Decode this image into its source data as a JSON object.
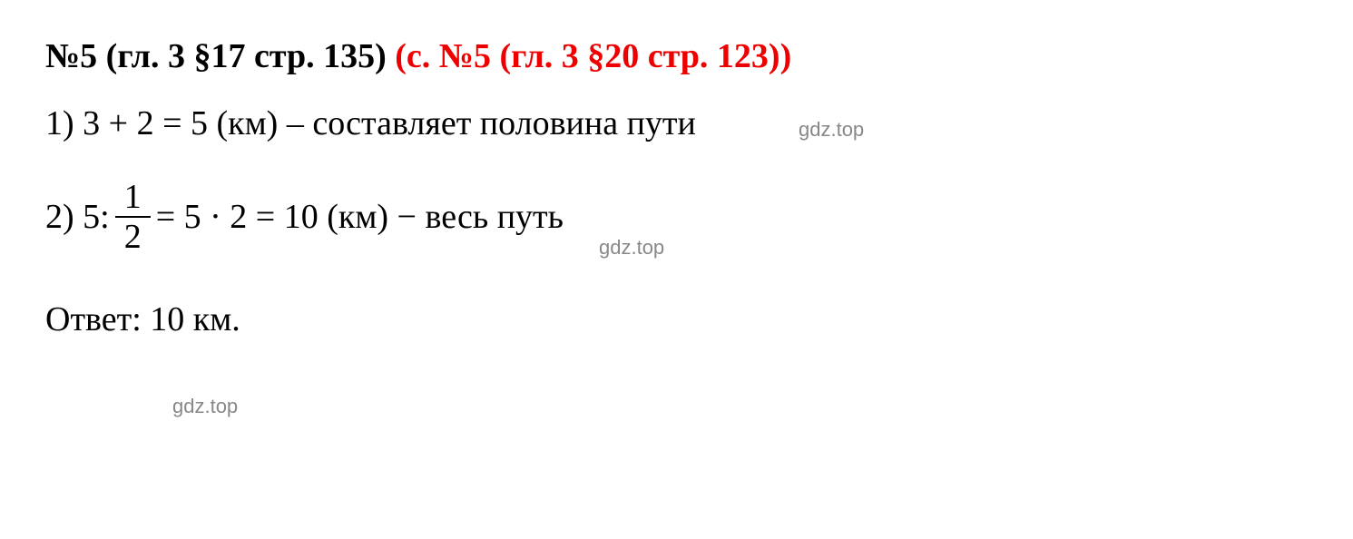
{
  "header": {
    "black_part": "№5 (гл. 3 §17 стр. 135) ",
    "red_part": "(с. №5 (гл. 3 §20 стр. 123))"
  },
  "watermarks": {
    "wm1": "gdz.top",
    "wm2": "gdz.top",
    "wm3": "gdz.top"
  },
  "line1": {
    "text": "1) 3 + 2 = 5 (км) – составляет половина пути"
  },
  "line2": {
    "prefix": "2) 5:",
    "frac_num": "1",
    "frac_den": "2",
    "middle": " = 5 · 2 = 10 (км) − весь путь"
  },
  "answer": {
    "text": "Ответ: 10 км."
  },
  "styling": {
    "background_color": "#ffffff",
    "text_color": "#000000",
    "header_black_color": "#000000",
    "header_red_color": "#ee0000",
    "watermark_color": "#888888",
    "font_family": "Times New Roman",
    "header_fontsize": 38,
    "body_fontsize": 38,
    "watermark_fontsize": 22,
    "header_fontweight": "bold",
    "fraction_border_width": 2.5
  }
}
